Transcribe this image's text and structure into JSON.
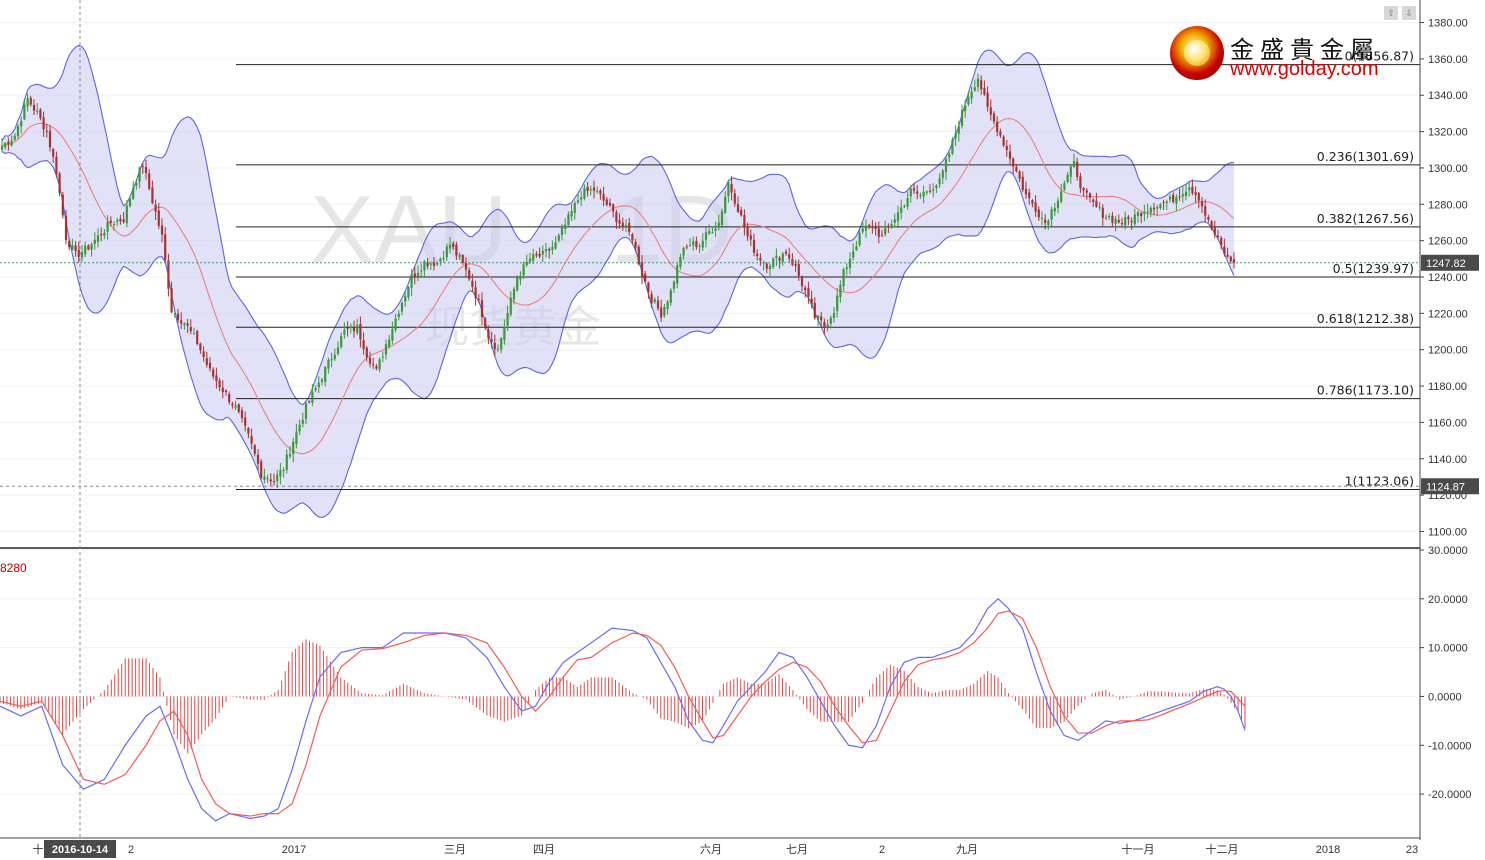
{
  "watermark": {
    "symbol": "XAU",
    "interval": "1D",
    "name": "现货黄金"
  },
  "logo": {
    "name_cn": "金盛貴金屬",
    "url": "www.golday.com"
  },
  "top_buttons": [
    "⇧",
    "⇩"
  ],
  "colors": {
    "bull": "#3a9a3a",
    "bear": "#a83232",
    "bollinger_line": "#5b66e0",
    "bollinger_fill": "#c8cbf0",
    "ma": "#ee7f7f",
    "macd": "#6a6cf0",
    "signal": "#f05b5b",
    "hist": "#e34a4a",
    "price_label_bg": "#4a4a4a"
  },
  "chart_data": [
    {
      "type": "candlestick",
      "panel": "price",
      "y_ticks": [
        "1380.00",
        "1360.00",
        "1340.00",
        "1320.00",
        "1300.00",
        "1280.00",
        "1260.00",
        "1240.00",
        "1220.00",
        "1200.00",
        "1180.00",
        "1160.00",
        "1140.00",
        "1120.00",
        "1100.00"
      ],
      "ylim": [
        1092,
        1388
      ],
      "current_price": {
        "value": 1247.82,
        "label": "1247.82"
      },
      "crosshair_price": {
        "value": 1124.87,
        "label": "1124.87"
      },
      "fibonacci": [
        {
          "value": 1356.87,
          "label": "0(1356.87)"
        },
        {
          "value": 1301.69,
          "label": "0.236(1301.69)"
        },
        {
          "value": 1267.56,
          "label": "0.382(1267.56)"
        },
        {
          "value": 1239.97,
          "label": "0.5(1239.97)"
        },
        {
          "value": 1212.38,
          "label": "0.618(1212.38)"
        },
        {
          "value": 1173.1,
          "label": "0.786(1173.10)"
        },
        {
          "value": 1123.06,
          "label": "1(1123.06)"
        }
      ],
      "series_anchors": [
        [
          0,
          1312
        ],
        [
          4,
          1318
        ],
        [
          8,
          1338
        ],
        [
          11,
          1330
        ],
        [
          14,
          1320
        ],
        [
          17,
          1298
        ],
        [
          20,
          1262
        ],
        [
          23,
          1252
        ],
        [
          26,
          1255
        ],
        [
          30,
          1262
        ],
        [
          34,
          1270
        ],
        [
          38,
          1272
        ],
        [
          41,
          1290
        ],
        [
          44,
          1302
        ],
        [
          47,
          1282
        ],
        [
          50,
          1262
        ],
        [
          53,
          1222
        ],
        [
          57,
          1215
        ],
        [
          61,
          1204
        ],
        [
          65,
          1188
        ],
        [
          69,
          1178
        ],
        [
          73,
          1168
        ],
        [
          77,
          1152
        ],
        [
          81,
          1132
        ],
        [
          85,
          1128
        ],
        [
          88,
          1135
        ],
        [
          91,
          1150
        ],
        [
          95,
          1168
        ],
        [
          99,
          1182
        ],
        [
          103,
          1196
        ],
        [
          107,
          1210
        ],
        [
          111,
          1212
        ],
        [
          114,
          1198
        ],
        [
          117,
          1188
        ],
        [
          120,
          1203
        ],
        [
          124,
          1222
        ],
        [
          128,
          1240
        ],
        [
          132,
          1248
        ],
        [
          136,
          1248
        ],
        [
          140,
          1258
        ],
        [
          143,
          1250
        ],
        [
          146,
          1240
        ],
        [
          149,
          1226
        ],
        [
          152,
          1208
        ],
        [
          155,
          1200
        ],
        [
          158,
          1220
        ],
        [
          161,
          1240
        ],
        [
          165,
          1250
        ],
        [
          169,
          1252
        ],
        [
          173,
          1258
        ],
        [
          177,
          1272
        ],
        [
          181,
          1286
        ],
        [
          185,
          1288
        ],
        [
          189,
          1280
        ],
        [
          193,
          1270
        ],
        [
          197,
          1262
        ],
        [
          200,
          1242
        ],
        [
          203,
          1228
        ],
        [
          206,
          1220
        ],
        [
          209,
          1232
        ],
        [
          212,
          1252
        ],
        [
          215,
          1258
        ],
        [
          218,
          1258
        ],
        [
          221,
          1265
        ],
        [
          224,
          1270
        ],
        [
          227,
          1292
        ],
        [
          230,
          1278
        ],
        [
          233,
          1262
        ],
        [
          236,
          1252
        ],
        [
          239,
          1247
        ],
        [
          242,
          1250
        ],
        [
          245,
          1254
        ],
        [
          248,
          1245
        ],
        [
          251,
          1232
        ],
        [
          254,
          1218
        ],
        [
          257,
          1213
        ],
        [
          260,
          1222
        ],
        [
          263,
          1242
        ],
        [
          266,
          1255
        ],
        [
          269,
          1266
        ],
        [
          272,
          1268
        ],
        [
          275,
          1262
        ],
        [
          278,
          1270
        ],
        [
          281,
          1278
        ],
        [
          284,
          1287
        ],
        [
          287,
          1285
        ],
        [
          290,
          1289
        ],
        [
          293,
          1292
        ],
        [
          296,
          1308
        ],
        [
          299,
          1325
        ],
        [
          302,
          1340
        ],
        [
          305,
          1350
        ],
        [
          308,
          1332
        ],
        [
          311,
          1322
        ],
        [
          314,
          1310
        ],
        [
          317,
          1298
        ],
        [
          320,
          1285
        ],
        [
          323,
          1278
        ],
        [
          326,
          1270
        ],
        [
          329,
          1280
        ],
        [
          332,
          1292
        ],
        [
          335,
          1302
        ],
        [
          338,
          1286
        ],
        [
          341,
          1280
        ],
        [
          344,
          1275
        ],
        [
          347,
          1272
        ],
        [
          350,
          1270
        ],
        [
          353,
          1272
        ],
        [
          356,
          1276
        ],
        [
          359,
          1279
        ],
        [
          362,
          1280
        ],
        [
          365,
          1282
        ],
        [
          368,
          1286
        ],
        [
          371,
          1290
        ],
        [
          374,
          1284
        ],
        [
          377,
          1270
        ],
        [
          380,
          1260
        ],
        [
          383,
          1250
        ],
        [
          385,
          1247.82
        ]
      ],
      "x_ticks": [
        "十",
        "2016-10-14",
        "2",
        "2017",
        "三月",
        "四月",
        "六月",
        "七月",
        "2",
        "九月",
        "十一月",
        "十二月",
        "2018",
        "23"
      ]
    },
    {
      "type": "macd",
      "panel": "indicator",
      "value_label": "8280",
      "y_ticks": [
        "30.0000",
        "20.0000",
        "10.0000",
        "0.0000",
        "-10.0000",
        "-20.0000"
      ],
      "ylim": [
        -29,
        30
      ],
      "macd_anchors": [
        [
          0,
          -2
        ],
        [
          6,
          -4
        ],
        [
          12,
          -2
        ],
        [
          18,
          -14
        ],
        [
          24,
          -19
        ],
        [
          30,
          -17
        ],
        [
          36,
          -10
        ],
        [
          42,
          -4
        ],
        [
          46,
          -2
        ],
        [
          50,
          -9
        ],
        [
          54,
          -17
        ],
        [
          58,
          -23
        ],
        [
          62,
          -25.5
        ],
        [
          66,
          -24
        ],
        [
          72,
          -25
        ],
        [
          76,
          -24.5
        ],
        [
          80,
          -23
        ],
        [
          84,
          -15
        ],
        [
          88,
          -5
        ],
        [
          92,
          4
        ],
        [
          98,
          9
        ],
        [
          104,
          10
        ],
        [
          110,
          10
        ],
        [
          116,
          13
        ],
        [
          122,
          13
        ],
        [
          128,
          13
        ],
        [
          134,
          12
        ],
        [
          140,
          8
        ],
        [
          145,
          2
        ],
        [
          150,
          -3
        ],
        [
          154,
          -2
        ],
        [
          158,
          3
        ],
        [
          162,
          7
        ],
        [
          166,
          9
        ],
        [
          170,
          11
        ],
        [
          176,
          14
        ],
        [
          182,
          13.5
        ],
        [
          186,
          12
        ],
        [
          190,
          7
        ],
        [
          194,
          2
        ],
        [
          198,
          -5
        ],
        [
          202,
          -9
        ],
        [
          205,
          -9.5
        ],
        [
          208,
          -6
        ],
        [
          212,
          -1
        ],
        [
          216,
          2
        ],
        [
          220,
          5
        ],
        [
          224,
          9
        ],
        [
          228,
          8
        ],
        [
          232,
          4
        ],
        [
          236,
          -1
        ],
        [
          240,
          -6
        ],
        [
          244,
          -10
        ],
        [
          248,
          -10.5
        ],
        [
          252,
          -6
        ],
        [
          256,
          2
        ],
        [
          260,
          7
        ],
        [
          264,
          8
        ],
        [
          268,
          8
        ],
        [
          272,
          9
        ],
        [
          276,
          10
        ],
        [
          280,
          13
        ],
        [
          284,
          18
        ],
        [
          287,
          20
        ],
        [
          290,
          18
        ],
        [
          294,
          14
        ],
        [
          298,
          5
        ],
        [
          302,
          -3
        ],
        [
          306,
          -8
        ],
        [
          310,
          -9
        ],
        [
          314,
          -7
        ],
        [
          318,
          -5
        ],
        [
          322,
          -5.5
        ],
        [
          326,
          -5
        ],
        [
          330,
          -4
        ],
        [
          334,
          -3
        ],
        [
          338,
          -2
        ],
        [
          342,
          -1
        ],
        [
          346,
          1
        ],
        [
          350,
          2
        ],
        [
          352,
          1.5
        ],
        [
          354,
          0
        ],
        [
          356,
          -3
        ],
        [
          358,
          -7
        ]
      ],
      "signal_anchors": [
        [
          0,
          -1
        ],
        [
          6,
          -2
        ],
        [
          12,
          -1
        ],
        [
          18,
          -8
        ],
        [
          24,
          -17
        ],
        [
          30,
          -18
        ],
        [
          36,
          -16
        ],
        [
          42,
          -10
        ],
        [
          46,
          -5
        ],
        [
          50,
          -3
        ],
        [
          54,
          -8
        ],
        [
          58,
          -17
        ],
        [
          62,
          -22
        ],
        [
          66,
          -24
        ],
        [
          72,
          -24.5
        ],
        [
          76,
          -24
        ],
        [
          80,
          -24
        ],
        [
          84,
          -22
        ],
        [
          88,
          -14
        ],
        [
          92,
          -4
        ],
        [
          98,
          6
        ],
        [
          104,
          9.5
        ],
        [
          110,
          9.8
        ],
        [
          116,
          11
        ],
        [
          122,
          12.5
        ],
        [
          128,
          13
        ],
        [
          134,
          12.5
        ],
        [
          140,
          11
        ],
        [
          145,
          6
        ],
        [
          150,
          0
        ],
        [
          154,
          -3
        ],
        [
          158,
          0
        ],
        [
          162,
          4
        ],
        [
          166,
          7.5
        ],
        [
          170,
          8
        ],
        [
          176,
          11
        ],
        [
          182,
          13
        ],
        [
          186,
          12.5
        ],
        [
          190,
          10.5
        ],
        [
          194,
          6
        ],
        [
          198,
          0
        ],
        [
          202,
          -5
        ],
        [
          205,
          -8.5
        ],
        [
          208,
          -8
        ],
        [
          212,
          -4
        ],
        [
          216,
          0
        ],
        [
          220,
          3
        ],
        [
          224,
          5.5
        ],
        [
          228,
          7
        ],
        [
          232,
          6
        ],
        [
          236,
          3
        ],
        [
          240,
          -2
        ],
        [
          244,
          -6
        ],
        [
          248,
          -9.5
        ],
        [
          252,
          -9
        ],
        [
          256,
          -3
        ],
        [
          260,
          3
        ],
        [
          264,
          6.5
        ],
        [
          268,
          7.5
        ],
        [
          272,
          8
        ],
        [
          276,
          9
        ],
        [
          280,
          11
        ],
        [
          284,
          14
        ],
        [
          287,
          17
        ],
        [
          290,
          17.5
        ],
        [
          294,
          16
        ],
        [
          298,
          10
        ],
        [
          302,
          2
        ],
        [
          306,
          -4
        ],
        [
          310,
          -7.5
        ],
        [
          314,
          -7.5
        ],
        [
          318,
          -6
        ],
        [
          322,
          -5
        ],
        [
          326,
          -5
        ],
        [
          330,
          -4.8
        ],
        [
          334,
          -3.8
        ],
        [
          338,
          -2.6
        ],
        [
          342,
          -1.5
        ],
        [
          346,
          -0.2
        ],
        [
          350,
          1
        ],
        [
          352,
          1.2
        ],
        [
          354,
          1
        ],
        [
          356,
          -0.5
        ],
        [
          358,
          -2
        ]
      ]
    }
  ]
}
